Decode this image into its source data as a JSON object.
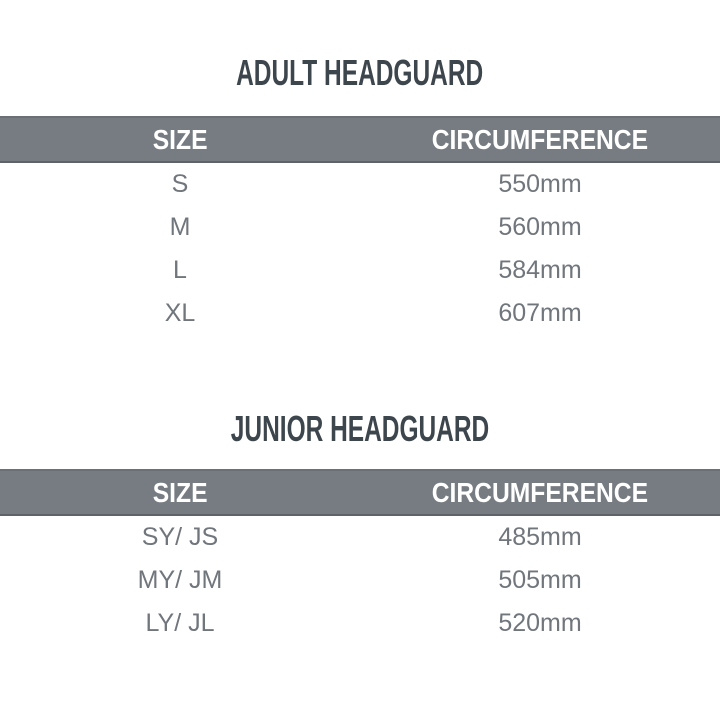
{
  "colors": {
    "background": "#ffffff",
    "title_text": "#3d454d",
    "header_bg": "#767c82",
    "header_edge_top": "#6a7076",
    "header_edge_bottom": "#5d6368",
    "header_text": "#ffffff",
    "row_text": "#70767c"
  },
  "chart_data": [
    {
      "type": "table",
      "title": "ADULT HEADGUARD",
      "columns": [
        "SIZE",
        "CIRCUMFERENCE"
      ],
      "rows": [
        [
          "S",
          "550mm"
        ],
        [
          "M",
          "560mm"
        ],
        [
          "L",
          "584mm"
        ],
        [
          "XL",
          "607mm"
        ]
      ]
    },
    {
      "type": "table",
      "title": "JUNIOR HEADGUARD",
      "columns": [
        "SIZE",
        "CIRCUMFERENCE"
      ],
      "rows": [
        [
          "SY/ JS",
          "485mm"
        ],
        [
          "MY/ JM",
          "505mm"
        ],
        [
          "LY/ JL",
          "520mm"
        ]
      ]
    }
  ]
}
